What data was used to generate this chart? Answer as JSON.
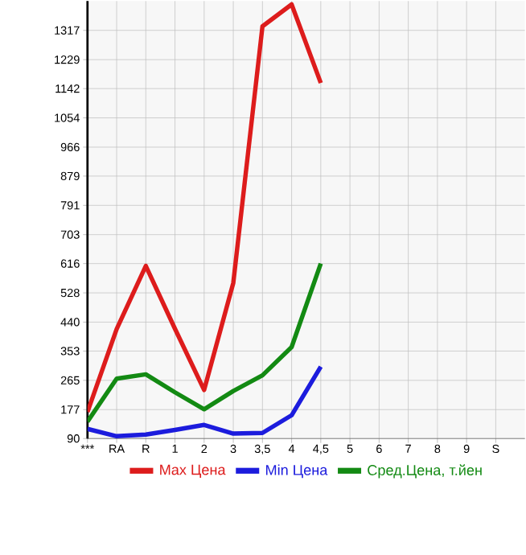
{
  "chart_data": {
    "type": "line",
    "categories": [
      "***",
      "RA",
      "R",
      "1",
      "2",
      "3",
      "3,5",
      "4",
      "4,5",
      "5",
      "6",
      "7",
      "8",
      "9",
      "S"
    ],
    "series": [
      {
        "name": "Max Цена",
        "color": "#dd1c1c",
        "values": [
          170,
          419,
          609,
          420,
          236,
          558,
          1329,
          1395,
          1159,
          null,
          null,
          null,
          null,
          null,
          null
        ]
      },
      {
        "name": "Min Цена",
        "color": "#1c1cdd",
        "values": [
          119,
          97,
          102,
          116,
          131,
          105,
          107,
          160,
          306,
          null,
          null,
          null,
          null,
          null,
          null
        ]
      },
      {
        "name": "Сред.Цена, т.йен",
        "color": "#138a13",
        "values": [
          141,
          270,
          283,
          229,
          178,
          233,
          280,
          365,
          616,
          null,
          null,
          null,
          null,
          null,
          null
        ]
      }
    ],
    "ylim": [
      90,
      1405
    ],
    "yticks": [
      90,
      177,
      265,
      353,
      440,
      528,
      616,
      703,
      791,
      879,
      966,
      1054,
      1142,
      1229,
      1317
    ],
    "grid": true,
    "legend": "bottom",
    "marker": "none",
    "line_style": "solid"
  }
}
